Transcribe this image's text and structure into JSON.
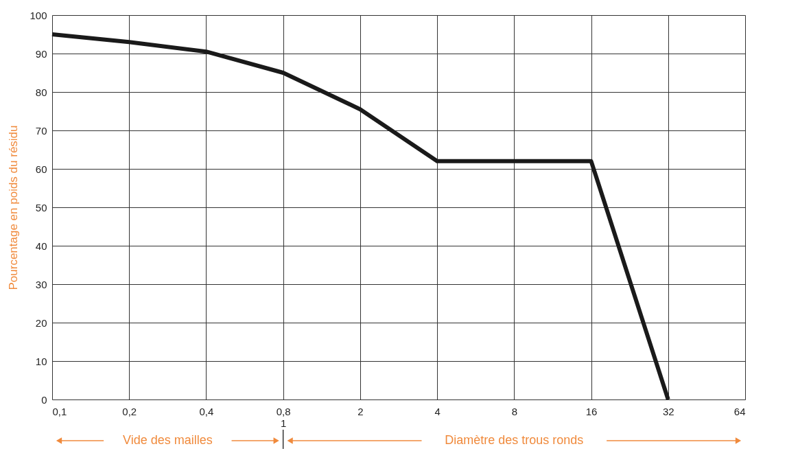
{
  "chart_data": {
    "type": "line",
    "ylabel": "Pourcentage en poids du résidu",
    "categories": [
      "0,1",
      "0,2",
      "0,4",
      "0,8\n1",
      "2",
      "4",
      "8",
      "16",
      "32",
      "64"
    ],
    "series": [
      {
        "color": "#1a1a1a",
        "values": [
          95,
          93,
          90.5,
          85,
          75.5,
          62,
          62,
          62,
          0,
          null
        ]
      }
    ],
    "ylim": [
      0,
      100
    ],
    "yticks": [
      0,
      10,
      20,
      30,
      40,
      50,
      60,
      70,
      80,
      90,
      100
    ],
    "grid": true,
    "marker": "none",
    "line_style": "solid",
    "annotations": [
      "Vide des mailles",
      "Diamètre des trous ronds"
    ]
  }
}
